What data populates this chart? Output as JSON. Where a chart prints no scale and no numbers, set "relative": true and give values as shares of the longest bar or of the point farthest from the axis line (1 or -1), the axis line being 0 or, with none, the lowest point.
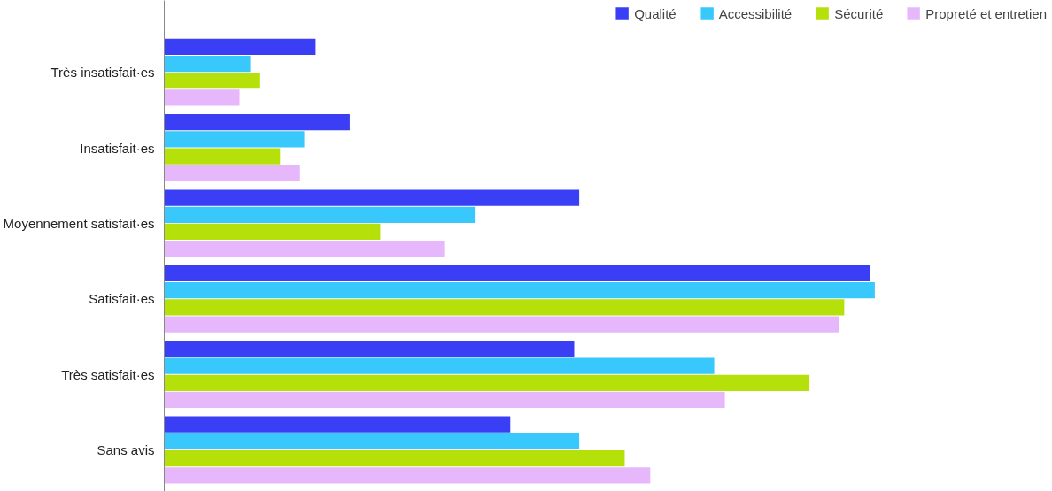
{
  "chart_data": {
    "type": "bar",
    "orientation": "horizontal",
    "relative": true,
    "legend": "top right",
    "categories": [
      "Très insatisfait·es",
      "Insatisfait·es",
      "Moyennement satisfait·es",
      "Satisfait·es",
      "Très satisfait·es",
      "Sans avis"
    ],
    "series": [
      {
        "name": "Qualité",
        "color": "#3a3ff5",
        "values": [
          0.213,
          0.261,
          0.584,
          0.993,
          0.577,
          0.487
        ]
      },
      {
        "name": "Accessibilité",
        "color": "#38c8fb",
        "values": [
          0.121,
          0.197,
          0.437,
          1,
          0.774,
          0.584
        ]
      },
      {
        "name": "Sécurité",
        "color": "#b5e00a",
        "values": [
          0.135,
          0.163,
          0.304,
          0.957,
          0.908,
          0.648
        ]
      },
      {
        "name": "Propreté et entretien",
        "color": "#e6b8fb",
        "values": [
          0.106,
          0.191,
          0.394,
          0.95,
          0.789,
          0.684
        ]
      }
    ]
  }
}
